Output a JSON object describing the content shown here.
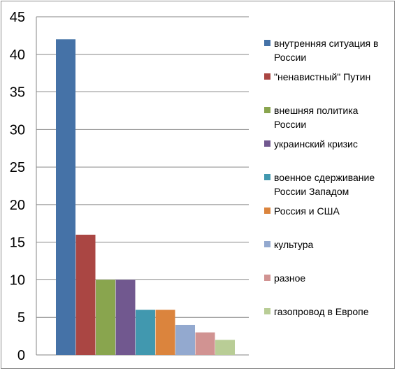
{
  "chart_data": {
    "type": "bar",
    "title": "",
    "xlabel": "",
    "ylabel": "",
    "ylim": [
      0,
      45
    ],
    "yticks": [
      "0",
      "5",
      "10",
      "15",
      "20",
      "25",
      "30",
      "35",
      "40",
      "45"
    ],
    "grid": true,
    "legend_position": "right",
    "series": [
      {
        "name": "внутренняя ситуация в России",
        "value": 42,
        "color": "#4572a7"
      },
      {
        "name": "\"ненавистный\" Путин",
        "value": 16,
        "color": "#aa4643"
      },
      {
        "name": "внешняя политика России",
        "value": 10,
        "color": "#89a54e"
      },
      {
        "name": "украинский кризис",
        "value": 10,
        "color": "#71588f"
      },
      {
        "name": "военное сдерживание России Западом",
        "value": 6,
        "color": "#4198af"
      },
      {
        "name": "Россия и США",
        "value": 6,
        "color": "#db843d"
      },
      {
        "name": "культура",
        "value": 4,
        "color": "#93a9cf"
      },
      {
        "name": "разное",
        "value": 3,
        "color": "#d19392"
      },
      {
        "name": "газопровод в Европе",
        "value": 2,
        "color": "#b9cd96"
      }
    ]
  }
}
